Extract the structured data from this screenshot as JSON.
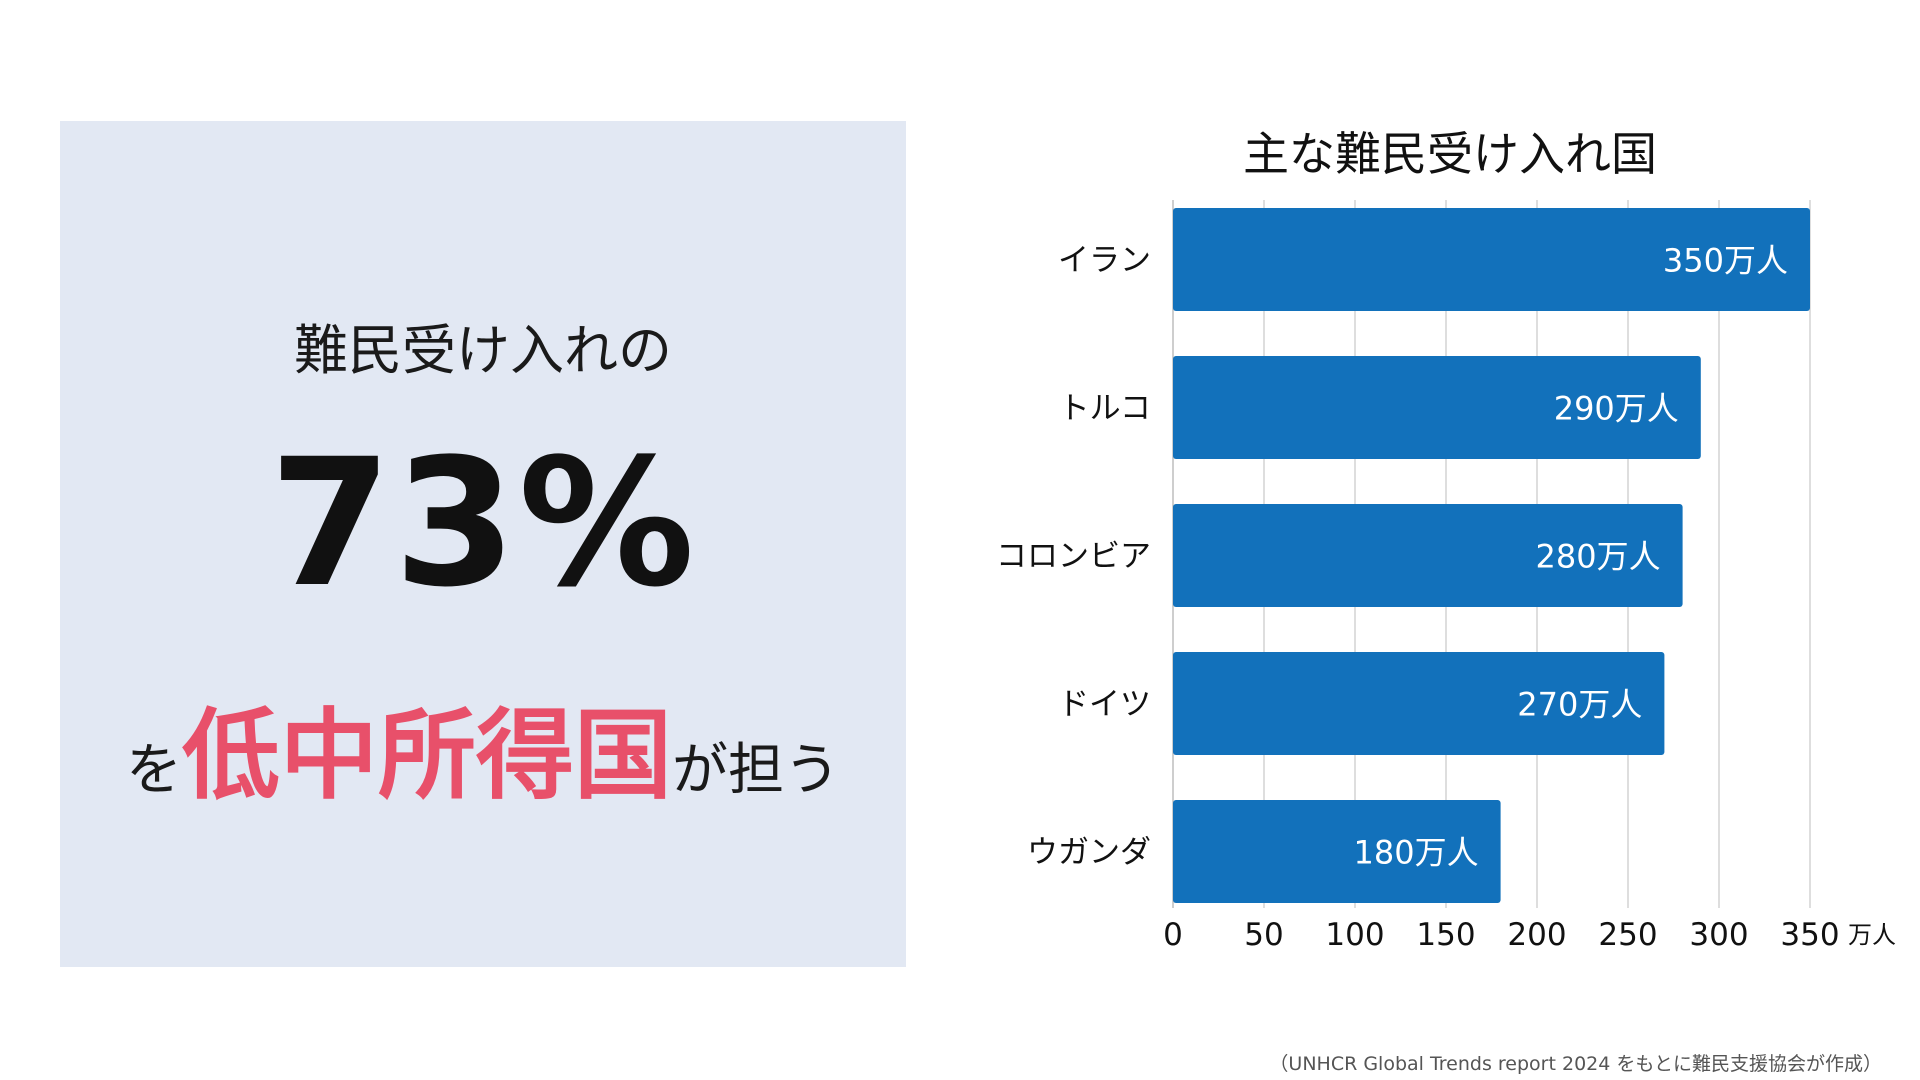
{
  "panel": {
    "line1": "難民受け入れの",
    "stat": "73%",
    "line3_prefix": "を",
    "line3_highlight": "低中所得国",
    "line3_suffix": "が担う",
    "highlight_color": "#e8506a",
    "background_color": "#e2e8f3"
  },
  "chart_data": {
    "type": "bar",
    "orientation": "horizontal",
    "title": "主な難民受け入れ国",
    "categories": [
      "イラン",
      "トルコ",
      "コロンビア",
      "ドイツ",
      "ウガンダ"
    ],
    "values": [
      350,
      290,
      280,
      270,
      180
    ],
    "value_labels": [
      "350万人",
      "290万人",
      "280万人",
      "270万人",
      "180万人"
    ],
    "x_ticks": [
      0,
      50,
      100,
      150,
      200,
      250,
      300,
      350
    ],
    "xlim": [
      0,
      350
    ],
    "unit": "万人",
    "bar_color": "#1271bb",
    "grid": true
  },
  "source": "（UNHCR Global Trends report 2024 をもとに難民支援協会が作成）"
}
